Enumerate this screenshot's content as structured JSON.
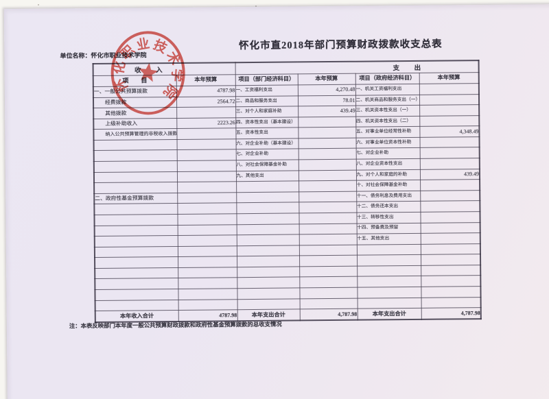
{
  "document": {
    "title": "怀化市直2018年部门预算财政拨款收支总表",
    "unit_label": "单位名称：怀化市职业技术学院",
    "note": "注：本表反映部门本年度一般公共预算财政拨款和政府性基金预算拨款的总收支情况",
    "stamp_text": "怀化职业技术学院"
  },
  "colors": {
    "stamp_red": "#cf3227",
    "paper": "#ebe7f2",
    "grid_line": "#46404f"
  },
  "table": {
    "group_headers": {
      "income": "收　入",
      "expense": "支　出"
    },
    "columns": [
      "项　　目",
      "本年预算",
      "项目（部门经济科目）",
      "本年预算",
      "项目（政府经济科目）",
      "本年预算"
    ],
    "income_sub_items": [
      "经费拨款",
      "其他拨款",
      "上级补助收入",
      "纳入公共预算管理的非税收入拨款"
    ],
    "shrink_items": [
      "纳入公共预算管理的非税收入拨款"
    ],
    "rows": [
      [
        "一、一般公共预算拨款",
        "4787.98",
        "一、工资福利支出",
        "4,270.48",
        "一、机关工资福利支出",
        ""
      ],
      [
        "经费拨款",
        "2564.72",
        "二、商品和服务支出",
        "78.01",
        "二、机关商品和服务支出（一）",
        ""
      ],
      [
        "其他拨款",
        "",
        "三、对个人和家庭补助",
        "439.49",
        "三、机关资本性支出（一）",
        ""
      ],
      [
        "上级补助收入",
        "2223.26",
        "四、资本性支出（基本建设）",
        "",
        "四、机关资本性支出（二）",
        ""
      ],
      [
        "纳入公共预算管理的非税收入拨款",
        "",
        "五、资本性支出",
        "",
        "五、对事业单位经常性补助",
        "4,348.49"
      ],
      [
        "",
        "",
        "六、对企业补助（基本建设）",
        "",
        "六、对事业单位资本性补助",
        ""
      ],
      [
        "",
        "",
        "七、对企业补助",
        "",
        "七、对企业补助",
        ""
      ],
      [
        "",
        "",
        "八、对社会保障基金补助",
        "",
        "八、对企业资本性支出",
        ""
      ],
      [
        "",
        "",
        "九、其他支出",
        "",
        "九、对个人和家庭的补助",
        "439.49"
      ],
      [
        "",
        "",
        "",
        "",
        "十、对社会保障基金补助",
        ""
      ],
      [
        "二、政府性基金预算拨款",
        "",
        "",
        "",
        "十一、债务利息及费用支出",
        ""
      ],
      [
        "",
        "",
        "",
        "",
        "十二、债务还本支出",
        ""
      ],
      [
        "",
        "",
        "",
        "",
        "十三、转移性支出",
        ""
      ],
      [
        "",
        "",
        "",
        "",
        "十四、预备费及预留",
        ""
      ],
      [
        "",
        "",
        "",
        "",
        "十五、其他支出",
        ""
      ],
      [
        "",
        "",
        "",
        "",
        "",
        ""
      ],
      [
        "",
        "",
        "",
        "",
        "",
        ""
      ],
      [
        "",
        "",
        "",
        "",
        "",
        ""
      ],
      [
        "",
        "",
        "",
        "",
        "",
        ""
      ],
      [
        "",
        "",
        "",
        "",
        "",
        ""
      ],
      [
        "",
        "",
        "",
        "",
        "",
        ""
      ]
    ],
    "totals": [
      "本年收入合计",
      "4787.98",
      "本年支出合计",
      "4,787.98",
      "本年支出合计",
      "4,787.98"
    ]
  }
}
